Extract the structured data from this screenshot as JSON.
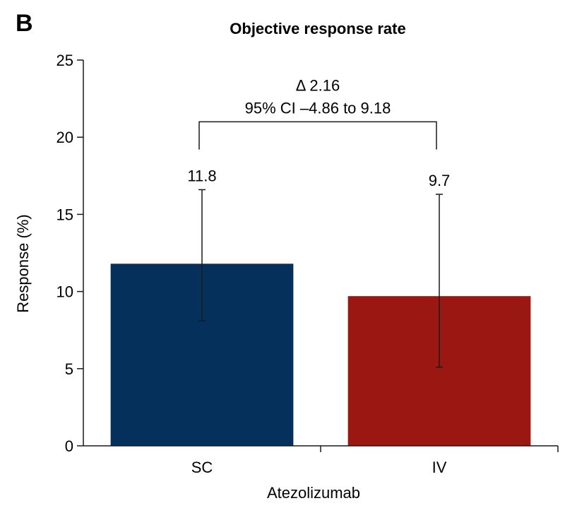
{
  "panel_label": "B",
  "chart_data": {
    "type": "bar",
    "title": "Objective response rate",
    "categories": [
      "SC",
      "IV"
    ],
    "values": [
      11.8,
      9.7
    ],
    "error_bars": [
      {
        "low": 8.1,
        "high": 16.6
      },
      {
        "low": 5.1,
        "high": 16.3
      }
    ],
    "data_labels": [
      "11.8",
      "9.7"
    ],
    "colors": [
      "#06305c",
      "#9b1712"
    ],
    "xlabel": "Atezolizumab",
    "ylabel": "Response (%)",
    "ylim": [
      0,
      25
    ],
    "yticks": [
      0,
      5,
      10,
      15,
      20,
      25
    ],
    "ytick_labels": [
      "0",
      "5",
      "10",
      "15",
      "20",
      "25"
    ],
    "grid": false,
    "annotation": {
      "line1": "Δ 2.16",
      "line2": "95% CI –4.86 to 9.18",
      "bracket_value": 21
    }
  }
}
